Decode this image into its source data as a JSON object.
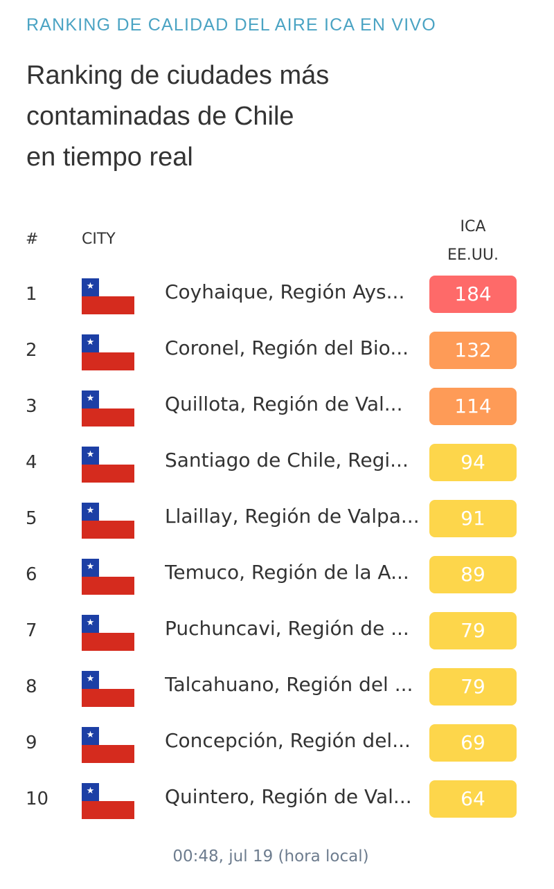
{
  "header": {
    "eyebrow": "RANKING DE CALIDAD DEL AIRE ICA EN VIVO",
    "title_lines": [
      "Ranking de ciudades más",
      "contaminadas de Chile",
      "en tiempo real"
    ]
  },
  "table": {
    "columns": {
      "rank": "#",
      "city": "CITY",
      "aqi_line1": "ICA",
      "aqi_line2": "EE.UU."
    },
    "rows": [
      {
        "rank": "1",
        "flag": "chile-flag-icon",
        "city": "Coyhaique, Región Ays...",
        "aqi": "184",
        "color": "#fe6a69"
      },
      {
        "rank": "2",
        "flag": "chile-flag-icon",
        "city": "Coronel, Región del Bio...",
        "aqi": "132",
        "color": "#fe9b57"
      },
      {
        "rank": "3",
        "flag": "chile-flag-icon",
        "city": "Quillota, Región de Val...",
        "aqi": "114",
        "color": "#fe9b57"
      },
      {
        "rank": "4",
        "flag": "chile-flag-icon",
        "city": "Santiago de Chile, Regi...",
        "aqi": "94",
        "color": "#fdd64b"
      },
      {
        "rank": "5",
        "flag": "chile-flag-icon",
        "city": "Llaillay, Región de Valpa...",
        "aqi": "91",
        "color": "#fdd64b"
      },
      {
        "rank": "6",
        "flag": "chile-flag-icon",
        "city": "Temuco, Región de la A...",
        "aqi": "89",
        "color": "#fdd64b"
      },
      {
        "rank": "7",
        "flag": "chile-flag-icon",
        "city": "Puchuncavi, Región de ...",
        "aqi": "79",
        "color": "#fdd64b"
      },
      {
        "rank": "8",
        "flag": "chile-flag-icon",
        "city": "Talcahuano, Región del ...",
        "aqi": "79",
        "color": "#fdd64b"
      },
      {
        "rank": "9",
        "flag": "chile-flag-icon",
        "city": "Concepción, Región del...",
        "aqi": "69",
        "color": "#fdd64b"
      },
      {
        "rank": "10",
        "flag": "chile-flag-icon",
        "city": "Quintero, Región de Val...",
        "aqi": "64",
        "color": "#fdd64b"
      }
    ]
  },
  "footer": {
    "timestamp": "00:48, jul 19 (hora local)"
  },
  "colors": {
    "eyebrow": "#4aa3c3",
    "unhealthy": "#fe6a69",
    "unhealthy_sensitive": "#fe9b57",
    "moderate": "#fdd64b"
  }
}
